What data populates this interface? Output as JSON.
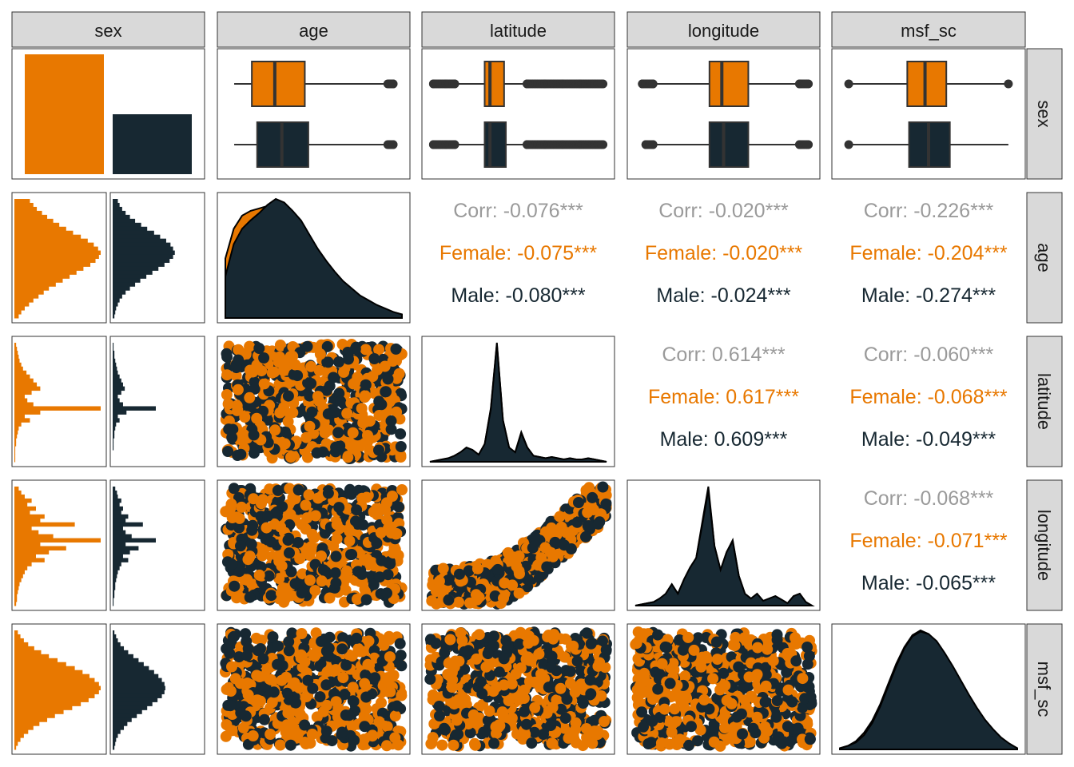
{
  "chart_data": {
    "type": "scatter",
    "variables": [
      "sex",
      "age",
      "latitude",
      "longitude",
      "msf_sc"
    ],
    "groups": [
      "Female",
      "Male"
    ],
    "colors": {
      "female": "#E87800",
      "male": "#172832",
      "overall_text": "#9A9A9A",
      "strip_fill": "#D9D9D9",
      "panel_border": "#333333",
      "outline": "#333333"
    },
    "sex_counts": {
      "categories": [
        "Female",
        "Male"
      ],
      "relative_heights": [
        1.0,
        0.5
      ]
    },
    "boxplots": {
      "age": {
        "Female": {
          "range": [
            0.05,
            0.95
          ],
          "box": [
            0.15,
            0.45
          ],
          "median": 0.28,
          "outliers": [
            0.93,
            0.95
          ]
        },
        "Male": {
          "range": [
            0.05,
            0.95
          ],
          "box": [
            0.18,
            0.47
          ],
          "median": 0.32,
          "outliers": [
            0.93,
            0.95
          ]
        }
      },
      "latitude": {
        "Female": {
          "range": [
            0.02,
            0.98
          ],
          "box": [
            0.31,
            0.42
          ],
          "median": 0.34,
          "outliers": [
            0.02,
            0.09,
            0.14,
            0.55,
            0.65,
            0.75,
            0.85,
            0.98
          ]
        },
        "Male": {
          "range": [
            0.02,
            0.98
          ],
          "box": [
            0.31,
            0.43
          ],
          "median": 0.34,
          "outliers": [
            0.02,
            0.09,
            0.14,
            0.55,
            0.65,
            0.75,
            0.85,
            0.98
          ]
        }
      },
      "longitude": {
        "Female": {
          "range": [
            0.04,
            0.98
          ],
          "box": [
            0.42,
            0.64
          ],
          "median": 0.49,
          "outliers": [
            0.04,
            0.1,
            0.93,
            0.98
          ]
        },
        "Male": {
          "range": [
            0.06,
            0.98
          ],
          "box": [
            0.42,
            0.64
          ],
          "median": 0.5,
          "outliers": [
            0.06,
            0.1,
            0.93,
            0.98
          ]
        }
      },
      "msf_sc": {
        "Female": {
          "range": [
            0.05,
            0.95
          ],
          "box": [
            0.38,
            0.6
          ],
          "median": 0.48,
          "outliers": [
            0.05,
            0.95
          ]
        },
        "Male": {
          "range": [
            0.05,
            0.95
          ],
          "box": [
            0.39,
            0.62
          ],
          "median": 0.5,
          "outliers": [
            0.05
          ]
        }
      }
    },
    "histograms": {
      "age": {
        "Female": [
          0.18,
          0.22,
          0.26,
          0.32,
          0.38,
          0.45,
          0.52,
          0.6,
          0.68,
          0.77,
          0.85,
          0.92,
          0.97,
          1.0,
          0.98,
          0.94,
          0.88,
          0.8,
          0.72,
          0.64,
          0.56,
          0.48,
          0.4,
          0.34,
          0.28,
          0.22,
          0.17,
          0.12,
          0.08,
          0.05
        ],
        "Male": [
          0.06,
          0.08,
          0.11,
          0.15,
          0.2,
          0.26,
          0.33,
          0.4,
          0.48,
          0.55,
          0.62,
          0.67,
          0.7,
          0.72,
          0.7,
          0.66,
          0.6,
          0.53,
          0.46,
          0.39,
          0.32,
          0.26,
          0.2,
          0.15,
          0.11,
          0.08,
          0.06,
          0.04,
          0.03,
          0.02
        ]
      },
      "latitude": {
        "Female": [
          0.02,
          0.03,
          0.04,
          0.05,
          0.06,
          0.08,
          0.1,
          0.14,
          0.18,
          0.22,
          0.26,
          0.3,
          0.2,
          0.12,
          0.15,
          0.22,
          1.0,
          0.3,
          0.12,
          0.18,
          0.08,
          0.05,
          0.04,
          0.03,
          0.02,
          0.02,
          0.01,
          0.01,
          0.01,
          0.01
        ],
        "Male": [
          0.01,
          0.01,
          0.02,
          0.02,
          0.03,
          0.04,
          0.05,
          0.06,
          0.08,
          0.1,
          0.12,
          0.14,
          0.1,
          0.06,
          0.08,
          0.12,
          0.5,
          0.16,
          0.06,
          0.08,
          0.04,
          0.03,
          0.02,
          0.02,
          0.01,
          0.01,
          0.01,
          0.0,
          0.0,
          0.0
        ]
      },
      "longitude": {
        "Female": [
          0.05,
          0.08,
          0.12,
          0.2,
          0.15,
          0.25,
          0.18,
          0.35,
          0.3,
          0.7,
          0.2,
          0.28,
          0.45,
          1.0,
          0.3,
          0.6,
          0.4,
          0.25,
          0.35,
          0.2,
          0.15,
          0.12,
          0.1,
          0.08,
          0.06,
          0.05,
          0.04,
          0.03,
          0.03,
          0.02
        ],
        "Male": [
          0.03,
          0.05,
          0.06,
          0.1,
          0.08,
          0.12,
          0.1,
          0.18,
          0.15,
          0.35,
          0.12,
          0.15,
          0.22,
          0.5,
          0.15,
          0.3,
          0.2,
          0.12,
          0.18,
          0.1,
          0.08,
          0.06,
          0.05,
          0.04,
          0.03,
          0.03,
          0.02,
          0.02,
          0.01,
          0.01
        ]
      },
      "msf_sc": {
        "Female": [
          0.04,
          0.07,
          0.11,
          0.16,
          0.23,
          0.31,
          0.4,
          0.5,
          0.6,
          0.7,
          0.79,
          0.87,
          0.93,
          0.98,
          1.0,
          0.98,
          0.93,
          0.86,
          0.77,
          0.67,
          0.57,
          0.47,
          0.38,
          0.29,
          0.22,
          0.16,
          0.11,
          0.07,
          0.04,
          0.02
        ],
        "Male": [
          0.02,
          0.04,
          0.06,
          0.09,
          0.13,
          0.18,
          0.24,
          0.3,
          0.36,
          0.42,
          0.48,
          0.53,
          0.57,
          0.6,
          0.61,
          0.6,
          0.57,
          0.52,
          0.46,
          0.4,
          0.34,
          0.28,
          0.22,
          0.17,
          0.13,
          0.09,
          0.06,
          0.04,
          0.03,
          0.02
        ]
      }
    },
    "densities": {
      "age": {
        "Female": [
          0.5,
          0.75,
          0.86,
          0.9,
          0.92,
          0.94,
          0.95,
          0.93,
          0.86,
          0.78,
          0.68,
          0.57,
          0.47,
          0.38,
          0.3,
          0.24,
          0.18,
          0.14,
          0.1,
          0.07,
          0.05,
          0.03
        ],
        "Male": [
          0.35,
          0.62,
          0.75,
          0.82,
          0.88,
          0.95,
          1.0,
          0.97,
          0.9,
          0.82,
          0.7,
          0.58,
          0.48,
          0.39,
          0.31,
          0.25,
          0.19,
          0.15,
          0.11,
          0.08,
          0.05,
          0.03
        ]
      },
      "latitude": {
        "Female": [
          0.0,
          0.01,
          0.02,
          0.03,
          0.05,
          0.08,
          0.12,
          0.1,
          0.06,
          0.15,
          0.45,
          1.0,
          0.35,
          0.12,
          0.08,
          0.25,
          0.12,
          0.05,
          0.04,
          0.03,
          0.04,
          0.03,
          0.02,
          0.03,
          0.02,
          0.02,
          0.03,
          0.02,
          0.01,
          0.0
        ],
        "Male": [
          0.0,
          0.01,
          0.02,
          0.03,
          0.05,
          0.08,
          0.12,
          0.1,
          0.06,
          0.15,
          0.44,
          0.99,
          0.35,
          0.12,
          0.08,
          0.24,
          0.12,
          0.05,
          0.04,
          0.03,
          0.04,
          0.03,
          0.02,
          0.03,
          0.02,
          0.02,
          0.03,
          0.02,
          0.01,
          0.0
        ]
      },
      "longitude": {
        "Female": [
          0.0,
          0.01,
          0.02,
          0.03,
          0.06,
          0.1,
          0.18,
          0.1,
          0.22,
          0.32,
          0.4,
          0.7,
          1.0,
          0.5,
          0.3,
          0.45,
          0.55,
          0.25,
          0.1,
          0.06,
          0.1,
          0.04,
          0.06,
          0.08,
          0.05,
          0.02,
          0.08,
          0.1,
          0.03,
          0.0
        ],
        "Male": [
          0.0,
          0.01,
          0.02,
          0.03,
          0.06,
          0.1,
          0.18,
          0.1,
          0.22,
          0.32,
          0.4,
          0.68,
          0.97,
          0.5,
          0.3,
          0.45,
          0.54,
          0.25,
          0.1,
          0.06,
          0.1,
          0.04,
          0.06,
          0.08,
          0.05,
          0.02,
          0.08,
          0.1,
          0.03,
          0.0
        ]
      },
      "msf_sc": {
        "Female": [
          0.01,
          0.03,
          0.07,
          0.14,
          0.24,
          0.38,
          0.55,
          0.72,
          0.86,
          0.96,
          1.0,
          0.97,
          0.9,
          0.8,
          0.69,
          0.57,
          0.45,
          0.34,
          0.24,
          0.16,
          0.09,
          0.04,
          0.01
        ],
        "Male": [
          0.01,
          0.03,
          0.06,
          0.12,
          0.22,
          0.36,
          0.53,
          0.7,
          0.85,
          0.95,
          0.99,
          0.97,
          0.91,
          0.81,
          0.7,
          0.58,
          0.46,
          0.35,
          0.25,
          0.17,
          0.1,
          0.05,
          0.01
        ]
      }
    },
    "correlations": [
      {
        "row": "age",
        "col": "latitude",
        "overall": "Corr: -0.076***",
        "female": "Female: -0.075***",
        "male": "Male: -0.080***"
      },
      {
        "row": "age",
        "col": "longitude",
        "overall": "Corr: -0.020***",
        "female": "Female: -0.020***",
        "male": "Male: -0.024***"
      },
      {
        "row": "age",
        "col": "msf_sc",
        "overall": "Corr: -0.226***",
        "female": "Female: -0.204***",
        "male": "Male: -0.274***"
      },
      {
        "row": "latitude",
        "col": "longitude",
        "overall": "Corr: 0.614***",
        "female": "Female: 0.617***",
        "male": "Male: 0.609***"
      },
      {
        "row": "latitude",
        "col": "msf_sc",
        "overall": "Corr: -0.060***",
        "female": "Female: -0.068***",
        "male": "Male: -0.049***"
      },
      {
        "row": "longitude",
        "col": "msf_sc",
        "overall": "Corr: -0.068***",
        "female": "Female: -0.071***",
        "male": "Male: -0.065***"
      }
    ]
  }
}
